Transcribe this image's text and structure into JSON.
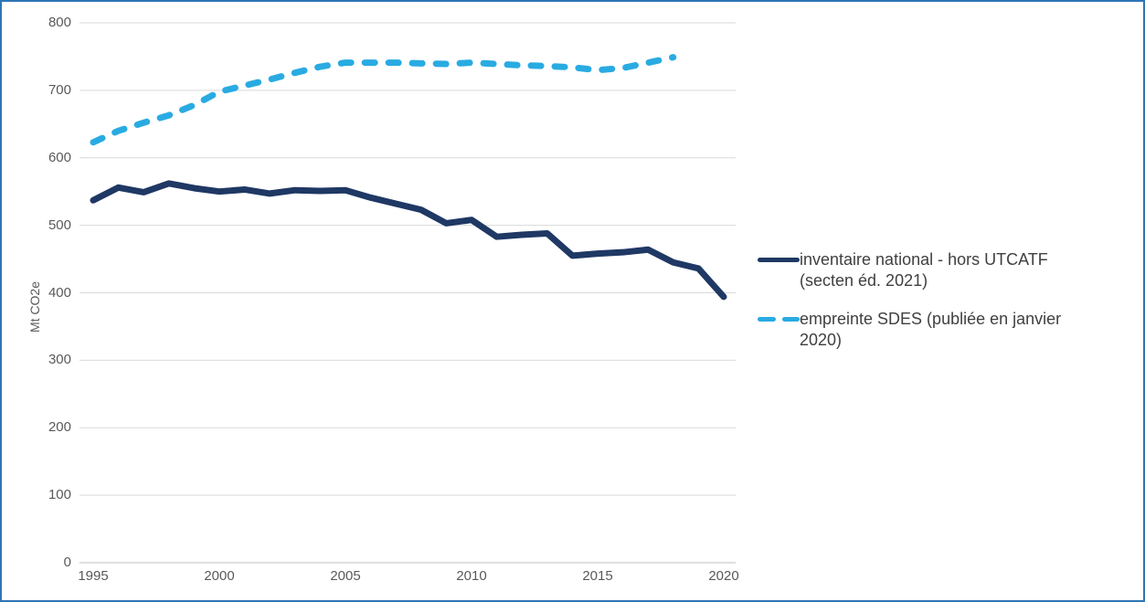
{
  "frame": {
    "border_color": "#2E75B6",
    "background_color": "#FFFFFF"
  },
  "chart_data": {
    "type": "line",
    "title": "",
    "xlabel": "",
    "ylabel": "Mt CO2e",
    "ylim": [
      0,
      800
    ],
    "xlim": [
      1995,
      2020
    ],
    "y_ticks": [
      0,
      100,
      200,
      300,
      400,
      500,
      600,
      700,
      800
    ],
    "x_ticks": [
      1995,
      2000,
      2005,
      2010,
      2015,
      2020
    ],
    "grid": "horizontal",
    "gridline_color": "#D9D9D9",
    "axis_line_color": "#BFBFBF",
    "tick_label_color": "#595959",
    "legend_position": "right",
    "series": [
      {
        "id": "inventaire-national",
        "name": "inventaire national - hors UTCATF (secten éd. 2021)",
        "color": "#1F3864",
        "style": "solid",
        "x": [
          1995,
          1996,
          1997,
          1998,
          1999,
          2000,
          2001,
          2002,
          2003,
          2004,
          2005,
          2006,
          2007,
          2008,
          2009,
          2010,
          2011,
          2012,
          2013,
          2014,
          2015,
          2016,
          2017,
          2018,
          2019,
          2020
        ],
        "values": [
          537,
          556,
          549,
          562,
          555,
          550,
          553,
          547,
          552,
          551,
          552,
          541,
          532,
          523,
          503,
          508,
          483,
          486,
          488,
          455,
          458,
          460,
          464,
          445,
          436,
          394
        ]
      },
      {
        "id": "empreinte-sdes",
        "name": "empreinte SDES (publiée en janvier 2020)",
        "color": "#29ABE2",
        "style": "dashed",
        "x": [
          1995,
          1996,
          1997,
          1998,
          1999,
          2000,
          2001,
          2002,
          2003,
          2004,
          2005,
          2006,
          2007,
          2008,
          2009,
          2010,
          2011,
          2012,
          2013,
          2014,
          2015,
          2016,
          2017,
          2018
        ],
        "values": [
          623,
          640,
          652,
          663,
          678,
          698,
          707,
          716,
          726,
          735,
          741,
          741,
          741,
          740,
          739,
          741,
          739,
          737,
          736,
          734,
          730,
          733,
          741,
          749
        ]
      }
    ]
  },
  "legend": {
    "items": [
      {
        "line1": "inventaire national - hors UTCATF",
        "line2": "(secten éd. 2021)"
      },
      {
        "line1": "empreinte SDES (publiée en janvier",
        "line2": "2020)"
      }
    ]
  }
}
